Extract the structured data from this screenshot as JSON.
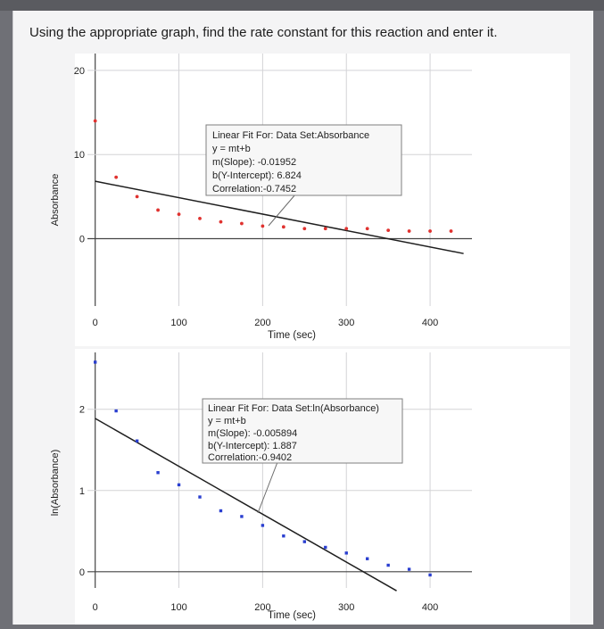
{
  "question": "Using the appropriate graph, find the rate constant for this reaction and enter it.",
  "colors": {
    "series1": "#e0322f",
    "series2": "#2a3fd0",
    "fit": "#1e1e1e"
  },
  "chart_data": [
    {
      "type": "scatter",
      "ylabel": "Absorbance",
      "xlabel": "Time (sec)",
      "xlim": [
        -5,
        450
      ],
      "ylim": [
        -8,
        22
      ],
      "xticks": [
        0,
        100,
        200,
        300,
        400
      ],
      "yticks": [
        0,
        10,
        20
      ],
      "series": [
        {
          "x": [
            0,
            25,
            50,
            75,
            100,
            125,
            150,
            175,
            200,
            225,
            250,
            275,
            300,
            325,
            350,
            375,
            400,
            425
          ],
          "y": [
            14.0,
            7.3,
            5.0,
            3.4,
            2.9,
            2.4,
            2.0,
            1.8,
            1.5,
            1.4,
            1.2,
            1.2,
            1.2,
            1.2,
            1.0,
            0.9,
            0.9,
            0.9
          ]
        }
      ],
      "fit": {
        "slope": -0.01952,
        "intercept": 6.824,
        "x_range": [
          0,
          440
        ]
      },
      "annotation": {
        "lines": [
          "Linear Fit For:  Data Set:Absorbance",
          "y = mt+b",
          "m(Slope): -0.01952",
          "b(Y-Intercept): 6.824",
          "Correlation:-0.7452"
        ]
      }
    },
    {
      "type": "scatter",
      "ylabel": "ln(Absorbance)",
      "xlabel": "Time (sec)",
      "xlim": [
        -5,
        450
      ],
      "ylim": [
        -0.2,
        2.7
      ],
      "xticks": [
        0,
        100,
        200,
        300,
        400
      ],
      "yticks": [
        0,
        1,
        2
      ],
      "series": [
        {
          "x": [
            0,
            25,
            50,
            75,
            100,
            125,
            150,
            175,
            200,
            225,
            250,
            275,
            300,
            325,
            350,
            375,
            400
          ],
          "y": [
            2.58,
            1.98,
            1.61,
            1.22,
            1.07,
            0.92,
            0.75,
            0.68,
            0.57,
            0.44,
            0.37,
            0.3,
            0.23,
            0.16,
            0.08,
            0.03,
            -0.04
          ]
        }
      ],
      "fit": {
        "slope": -0.005894,
        "intercept": 1.887,
        "x_range": [
          0,
          360
        ]
      },
      "annotation": {
        "lines": [
          "Linear Fit For:  Data Set:ln(Absorbance)",
          "y = mt+b",
          "m(Slope): -0.005894",
          "b(Y-Intercept): 1.887",
          "Correlation:-0.9402"
        ]
      }
    }
  ]
}
